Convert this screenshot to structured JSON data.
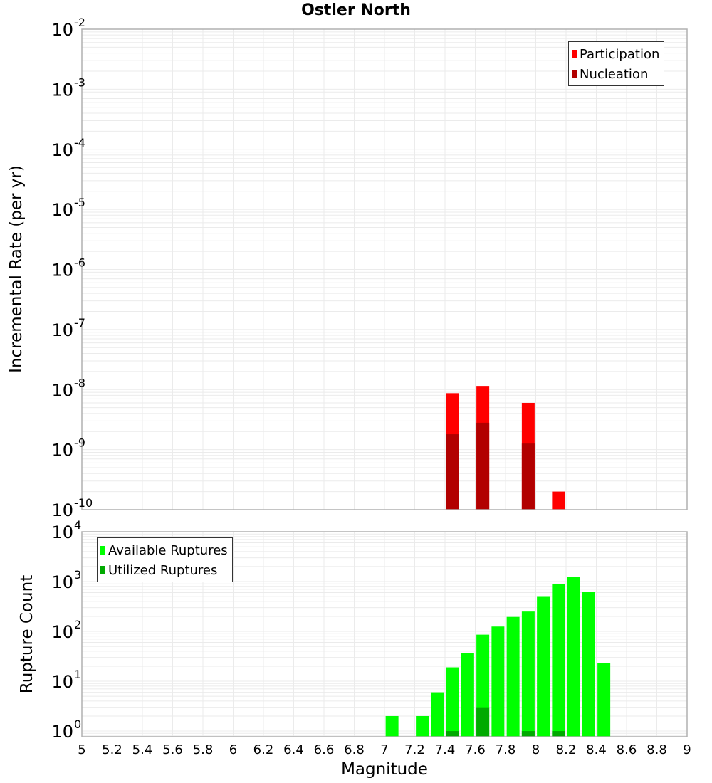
{
  "title": "Ostler North",
  "top_panel": {
    "ylabel": "Incremental Rate (per yr)",
    "legend": [
      {
        "label": "Participation",
        "color": "#ff0000"
      },
      {
        "label": "Nucleation",
        "color": "#b20000"
      }
    ]
  },
  "bottom_panel": {
    "ylabel": "Rupture Count",
    "legend": [
      {
        "label": "Available Ruptures",
        "color": "#00ff00"
      },
      {
        "label": "Utilized Ruptures",
        "color": "#00aa00"
      }
    ]
  },
  "xlabel": "Magnitude",
  "chart_data": [
    {
      "type": "bar",
      "title": "Ostler North",
      "xlabel": "Magnitude",
      "ylabel": "Incremental Rate (per yr)",
      "yscale": "log",
      "xlim": [
        5,
        9
      ],
      "ylim": [
        1e-10,
        0.01
      ],
      "x_ticks": [
        "5",
        "5.2",
        "5.4",
        "5.6",
        "5.8",
        "6",
        "6.2",
        "6.4",
        "6.6",
        "6.8",
        "7",
        "7.2",
        "7.4",
        "7.6",
        "7.8",
        "8",
        "8.2",
        "8.4",
        "8.6",
        "8.8",
        "9"
      ],
      "y_ticks": [
        "10^-2",
        "10^-3",
        "10^-4",
        "10^-5",
        "10^-6",
        "10^-7",
        "10^-8",
        "10^-9",
        "10^-10"
      ],
      "grid": true,
      "legend_position": "upper right",
      "x": [
        7.45,
        7.65,
        7.95,
        8.15
      ],
      "series": [
        {
          "name": "Participation",
          "color": "#ff0000",
          "values": [
            8.7e-09,
            1.15e-08,
            6e-09,
            2e-10
          ]
        },
        {
          "name": "Nucleation",
          "color": "#b20000",
          "values": [
            1.8e-09,
            2.8e-09,
            1.26e-09,
            0
          ]
        }
      ]
    },
    {
      "type": "bar",
      "xlabel": "Magnitude",
      "ylabel": "Rupture Count",
      "yscale": "log",
      "xlim": [
        5,
        9
      ],
      "ylim": [
        0.77,
        10000.0
      ],
      "x_ticks": [
        "5",
        "5.2",
        "5.4",
        "5.6",
        "5.8",
        "6",
        "6.2",
        "6.4",
        "6.6",
        "6.8",
        "7",
        "7.2",
        "7.4",
        "7.6",
        "7.8",
        "8",
        "8.2",
        "8.4",
        "8.6",
        "8.8",
        "9"
      ],
      "y_ticks": [
        "10^4",
        "10^3",
        "10^2",
        "10^1",
        "10^0"
      ],
      "grid": true,
      "legend_position": "upper left",
      "x": [
        7.05,
        7.25,
        7.35,
        7.45,
        7.55,
        7.65,
        7.75,
        7.85,
        7.95,
        8.05,
        8.15,
        8.25,
        8.35,
        8.45
      ],
      "series": [
        {
          "name": "Available Ruptures",
          "color": "#00ff00",
          "values": [
            2,
            2,
            6,
            19,
            37,
            86,
            125,
            195,
            250,
            510,
            900,
            1250,
            620,
            23
          ]
        },
        {
          "name": "Utilized Ruptures",
          "color": "#00aa00",
          "values": [
            0,
            0,
            0,
            1,
            0,
            3,
            0,
            0,
            1,
            0,
            1,
            0,
            0,
            0
          ]
        }
      ]
    }
  ]
}
